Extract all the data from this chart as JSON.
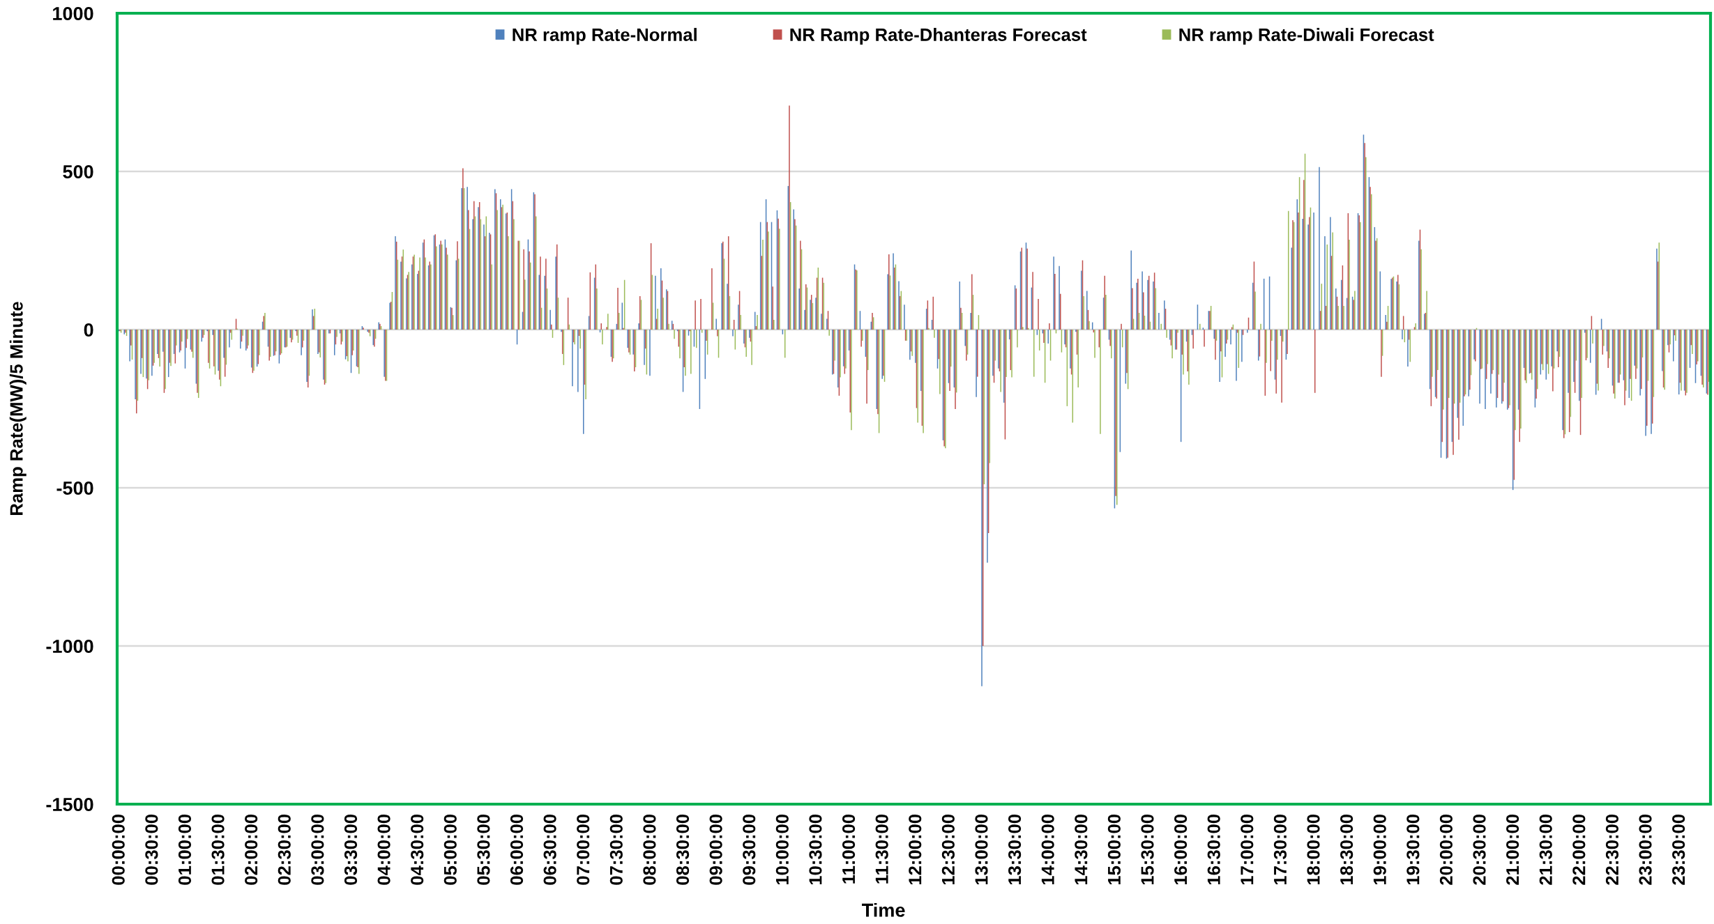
{
  "chart_data": {
    "type": "bar",
    "xlabel": "Time",
    "ylabel": "Ramp Rate(MW)/5 Minute",
    "ylim": [
      -1500,
      1000
    ],
    "yticks": [
      -1500,
      -1000,
      -500,
      0,
      500,
      1000
    ],
    "grid": "y",
    "legend": "top",
    "categories": [
      "00:00:00",
      null,
      null,
      null,
      null,
      null,
      "00:30:00",
      null,
      null,
      null,
      null,
      null,
      "01:00:00",
      null,
      null,
      null,
      null,
      null,
      "01:30:00",
      null,
      null,
      null,
      null,
      null,
      "02:00:00",
      null,
      null,
      null,
      null,
      null,
      "02:30:00",
      null,
      null,
      null,
      null,
      null,
      "03:00:00",
      null,
      null,
      null,
      null,
      null,
      "03:30:00",
      null,
      null,
      null,
      null,
      null,
      "04:00:00",
      null,
      null,
      null,
      null,
      null,
      "04:30:00",
      null,
      null,
      null,
      null,
      null,
      "05:00:00",
      null,
      null,
      null,
      null,
      null,
      "05:30:00",
      null,
      null,
      null,
      null,
      null,
      "06:00:00",
      null,
      null,
      null,
      null,
      null,
      "06:30:00",
      null,
      null,
      null,
      null,
      null,
      "07:00:00",
      null,
      null,
      null,
      null,
      null,
      "07:30:00",
      null,
      null,
      null,
      null,
      null,
      "08:00:00",
      null,
      null,
      null,
      null,
      null,
      "08:30:00",
      null,
      null,
      null,
      null,
      null,
      "09:00:00",
      null,
      null,
      null,
      null,
      null,
      "09:30:00",
      null,
      null,
      null,
      null,
      null,
      "10:00:00",
      null,
      null,
      null,
      null,
      null,
      "10:30:00",
      null,
      null,
      null,
      null,
      null,
      "11:00:00",
      null,
      null,
      null,
      null,
      null,
      "11:30:00",
      null,
      null,
      null,
      null,
      null,
      "12:00:00",
      null,
      null,
      null,
      null,
      null,
      "12:30:00",
      null,
      null,
      null,
      null,
      null,
      "13:00:00",
      null,
      null,
      null,
      null,
      null,
      "13:30:00",
      null,
      null,
      null,
      null,
      null,
      "14:00:00",
      null,
      null,
      null,
      null,
      null,
      "14:30:00",
      null,
      null,
      null,
      null,
      null,
      "15:00:00",
      null,
      null,
      null,
      null,
      null,
      "15:30:00",
      null,
      null,
      null,
      null,
      null,
      "16:00:00",
      null,
      null,
      null,
      null,
      null,
      "16:30:00",
      null,
      null,
      null,
      null,
      null,
      "17:00:00",
      null,
      null,
      null,
      null,
      null,
      "17:30:00",
      null,
      null,
      null,
      null,
      null,
      "18:00:00",
      null,
      null,
      null,
      null,
      null,
      "18:30:00",
      null,
      null,
      null,
      null,
      null,
      "19:00:00",
      null,
      null,
      null,
      null,
      null,
      "19:30:00",
      null,
      null,
      null,
      null,
      null,
      "20:00:00",
      null,
      null,
      null,
      null,
      null,
      "20:30:00",
      null,
      null,
      null,
      null,
      null,
      "21:00:00",
      null,
      null,
      null,
      null,
      null,
      "21:30:00",
      null,
      null,
      null,
      null,
      null,
      "22:00:00",
      null,
      null,
      null,
      null,
      null,
      "22:30:00",
      null,
      null,
      null,
      null,
      null,
      "23:00:00",
      null,
      null,
      null,
      null,
      null,
      "23:30:00",
      null,
      null,
      null,
      null,
      null
    ],
    "series": [
      {
        "name": "NR ramp Rate-Normal",
        "color": "#4f81bd",
        "values": [
          -5,
          -15,
          -100,
          -220,
          -140,
          -155,
          -146,
          -77,
          -70,
          -150,
          -77,
          -72,
          -123,
          -63,
          -171,
          -38,
          -5,
          -17,
          -130,
          -89,
          -56,
          0,
          -60,
          -66,
          -120,
          -117,
          25,
          -54,
          -83,
          -107,
          -56,
          -26,
          -5,
          -81,
          -165,
          64,
          -77,
          -158,
          -12,
          -81,
          -12,
          -94,
          -137,
          -116,
          11,
          -7,
          -49,
          23,
          -149,
          85,
          295,
          215,
          162,
          206,
          176,
          275,
          203,
          298,
          269,
          285,
          71,
          219,
          447,
          451,
          349,
          387,
          332,
          306,
          444,
          412,
          367,
          444,
          -47,
          56,
          285,
          434,
          173,
          170,
          62,
          231,
          -7,
          0,
          -179,
          -197,
          -330,
          43,
          164,
          -9,
          0,
          -86,
          18,
          85,
          -58,
          -79,
          20,
          -112,
          -146,
          170,
          194,
          127,
          28,
          -5,
          -197,
          -19,
          -54,
          -251,
          -156,
          0,
          34,
          273,
          145,
          -21,
          79,
          -44,
          -26,
          56,
          340,
          412,
          340,
          377,
          -15,
          454,
          380,
          130,
          62,
          94,
          101,
          50,
          34,
          -142,
          -183,
          -116,
          -66,
          206,
          59,
          -86,
          25,
          -251,
          -156,
          175,
          241,
          153,
          79,
          -95,
          -105,
          -194,
          66,
          31,
          -123,
          -350,
          -169,
          -183,
          152,
          -52,
          53,
          -213,
          -1127,
          -737,
          -146,
          -123,
          -231,
          -31,
          140,
          247,
          275,
          133,
          -17,
          -12,
          -44,
          231,
          201,
          -47,
          -123,
          -7,
          186,
          122,
          23,
          0,
          101,
          -32,
          -565,
          -387,
          -171,
          250,
          148,
          184,
          157,
          152,
          53,
          92,
          -32,
          -63,
          -355,
          -38,
          -17,
          79,
          6,
          59,
          -29,
          -165,
          -86,
          -47,
          -162,
          -102,
          -10,
          148,
          -98,
          161,
          168,
          -158,
          -20,
          -95,
          259,
          412,
          350,
          332,
          370,
          514,
          295,
          356,
          130,
          157,
          100,
          104,
          368,
          616,
          482,
          324,
          184,
          46,
          160,
          152,
          -31,
          -117,
          0,
          281,
          50,
          -188,
          -213,
          -405,
          -408,
          -355,
          -279,
          -304,
          -211,
          -94,
          -234,
          -251,
          -202,
          -246,
          -234,
          -253,
          -507,
          -253,
          -121,
          -139,
          -246,
          -142,
          -158,
          -116,
          -69,
          -318,
          -200,
          -165,
          -225,
          -10,
          -105,
          -206,
          34,
          -69,
          -177,
          -168,
          -160,
          -216,
          -114,
          -208,
          -336,
          -330,
          256,
          -131,
          -49,
          -100,
          -205,
          -193,
          -121,
          -169,
          -146,
          -202
        ]
      },
      {
        "name": "NR Ramp Rate-Dhanteras Forecast",
        "color": "#c0504d",
        "values": [
          -5,
          -10,
          -50,
          -265,
          -90,
          -188,
          -114,
          -90,
          -200,
          -105,
          -107,
          -66,
          -58,
          -70,
          -200,
          -26,
          -105,
          -116,
          -158,
          -149,
          -10,
          34,
          -38,
          -60,
          -137,
          -109,
          43,
          -98,
          -81,
          -80,
          -56,
          -40,
          -19,
          -56,
          -183,
          43,
          -72,
          -174,
          -12,
          -47,
          -47,
          -84,
          -81,
          -119,
          6,
          -10,
          -54,
          18,
          -162,
          88,
          278,
          231,
          173,
          231,
          186,
          285,
          215,
          301,
          281,
          259,
          69,
          279,
          510,
          378,
          406,
          403,
          295,
          301,
          431,
          387,
          370,
          406,
          281,
          254,
          247,
          428,
          231,
          224,
          16,
          269,
          -77,
          101,
          -40,
          -20,
          -174,
          181,
          206,
          20,
          8,
          -102,
          132,
          5,
          -72,
          -132,
          106,
          -60,
          273,
          34,
          155,
          122,
          18,
          -54,
          -119,
          -5,
          92,
          97,
          -35,
          194,
          -21,
          278,
          295,
          31,
          122,
          -56,
          -38,
          11,
          233,
          340,
          136,
          351,
          0,
          708,
          349,
          281,
          143,
          110,
          164,
          164,
          59,
          -140,
          -209,
          -140,
          -262,
          190,
          -54,
          -234,
          53,
          -267,
          -146,
          238,
          196,
          106,
          -35,
          -69,
          -248,
          -304,
          92,
          104,
          -93,
          -369,
          -194,
          -251,
          69,
          -98,
          175,
          -149,
          -1000,
          -643,
          -168,
          -132,
          -347,
          -128,
          130,
          259,
          256,
          182,
          97,
          -42,
          20,
          176,
          113,
          -56,
          -142,
          -79,
          219,
          62,
          -9,
          -56,
          170,
          -52,
          -526,
          18,
          -137,
          131,
          161,
          118,
          170,
          180,
          0,
          66,
          -50,
          -63,
          -79,
          -132,
          -60,
          0,
          -54,
          59,
          -95,
          -69,
          -44,
          8,
          -10,
          -17,
          38,
          215,
          -85,
          -209,
          -131,
          -202,
          -231,
          -77,
          346,
          370,
          473,
          356,
          -200,
          59,
          75,
          233,
          104,
          203,
          368,
          94,
          361,
          590,
          451,
          281,
          -149,
          25,
          164,
          173,
          43,
          -32,
          8,
          316,
          53,
          -242,
          -218,
          -355,
          -405,
          -396,
          -348,
          -211,
          -190,
          -100,
          -125,
          -156,
          -140,
          -216,
          -227,
          -248,
          -475,
          -355,
          -160,
          -137,
          -218,
          -109,
          -109,
          -195,
          -119,
          -343,
          -324,
          -200,
          -333,
          -97,
          43,
          -171,
          -79,
          -121,
          -202,
          -168,
          -239,
          -156,
          -156,
          -188,
          -304,
          -297,
          215,
          -183,
          -72,
          -18,
          -168,
          -208,
          -49,
          -110,
          -174,
          -206
        ]
      },
      {
        "name": "NR ramp Rate-Diwali Forecast",
        "color": "#9bbb59",
        "values": [
          -10,
          -20,
          -95,
          -225,
          -150,
          -160,
          -105,
          -117,
          -188,
          -115,
          -50,
          -38,
          -30,
          -89,
          -216,
          -17,
          -123,
          -142,
          -179,
          -111,
          -32,
          3,
          -19,
          -50,
          -130,
          -81,
          53,
          -86,
          -69,
          -75,
          -54,
          -32,
          -42,
          -35,
          -146,
          66,
          -88,
          -169,
          0,
          -23,
          -38,
          -100,
          -66,
          -140,
          0,
          -21,
          -29,
          11,
          -162,
          119,
          221,
          253,
          182,
          237,
          228,
          228,
          206,
          263,
          269,
          237,
          46,
          224,
          447,
          318,
          358,
          349,
          358,
          206,
          378,
          395,
          295,
          349,
          281,
          158,
          212,
          358,
          69,
          130,
          -26,
          101,
          -112,
          16,
          -47,
          -60,
          -220,
          0,
          130,
          -47,
          50,
          -91,
          53,
          157,
          -79,
          -119,
          94,
          -142,
          173,
          66,
          101,
          18,
          -29,
          -91,
          -146,
          -140,
          -58,
          -10,
          -79,
          85,
          -89,
          224,
          106,
          -63,
          46,
          -86,
          -112,
          46,
          284,
          310,
          31,
          319,
          -89,
          403,
          329,
          254,
          133,
          84,
          196,
          148,
          -19,
          -98,
          -151,
          -123,
          -318,
          187,
          -35,
          -128,
          39,
          -327,
          -165,
          171,
          206,
          122,
          -35,
          -83,
          -294,
          -327,
          5,
          -26,
          -204,
          -375,
          -117,
          -199,
          53,
          -79,
          110,
          46,
          -489,
          -422,
          -98,
          -197,
          -150,
          -151,
          -56,
          8,
          5,
          -149,
          -66,
          -168,
          -98,
          -12,
          -72,
          -242,
          -294,
          -183,
          106,
          27,
          -89,
          -330,
          110,
          -91,
          -554,
          -56,
          -188,
          34,
          53,
          44,
          25,
          131,
          18,
          -26,
          -91,
          -10,
          -142,
          -174,
          0,
          18,
          0,
          75,
          -35,
          -151,
          -32,
          16,
          -121,
          0,
          0,
          120,
          18,
          -105,
          -35,
          -95,
          -38,
          375,
          340,
          482,
          556,
          386,
          0,
          145,
          269,
          307,
          75,
          75,
          284,
          122,
          340,
          545,
          428,
          289,
          -83,
          75,
          168,
          143,
          -40,
          -102,
          20,
          254,
          122,
          -149,
          -128,
          -253,
          -216,
          -234,
          -231,
          -205,
          -144,
          5,
          -123,
          -109,
          -128,
          -142,
          -168,
          -239,
          -318,
          -313,
          -169,
          -158,
          -188,
          -128,
          -140,
          -123,
          -86,
          -331,
          -276,
          -98,
          -216,
          -90,
          -44,
          -193,
          -52,
          -91,
          -218,
          -142,
          -193,
          -225,
          -123,
          -88,
          -162,
          -213,
          275,
          -190,
          -47,
          -35,
          -193,
          -200,
          -77,
          -100,
          -183,
          -165
        ]
      }
    ]
  }
}
